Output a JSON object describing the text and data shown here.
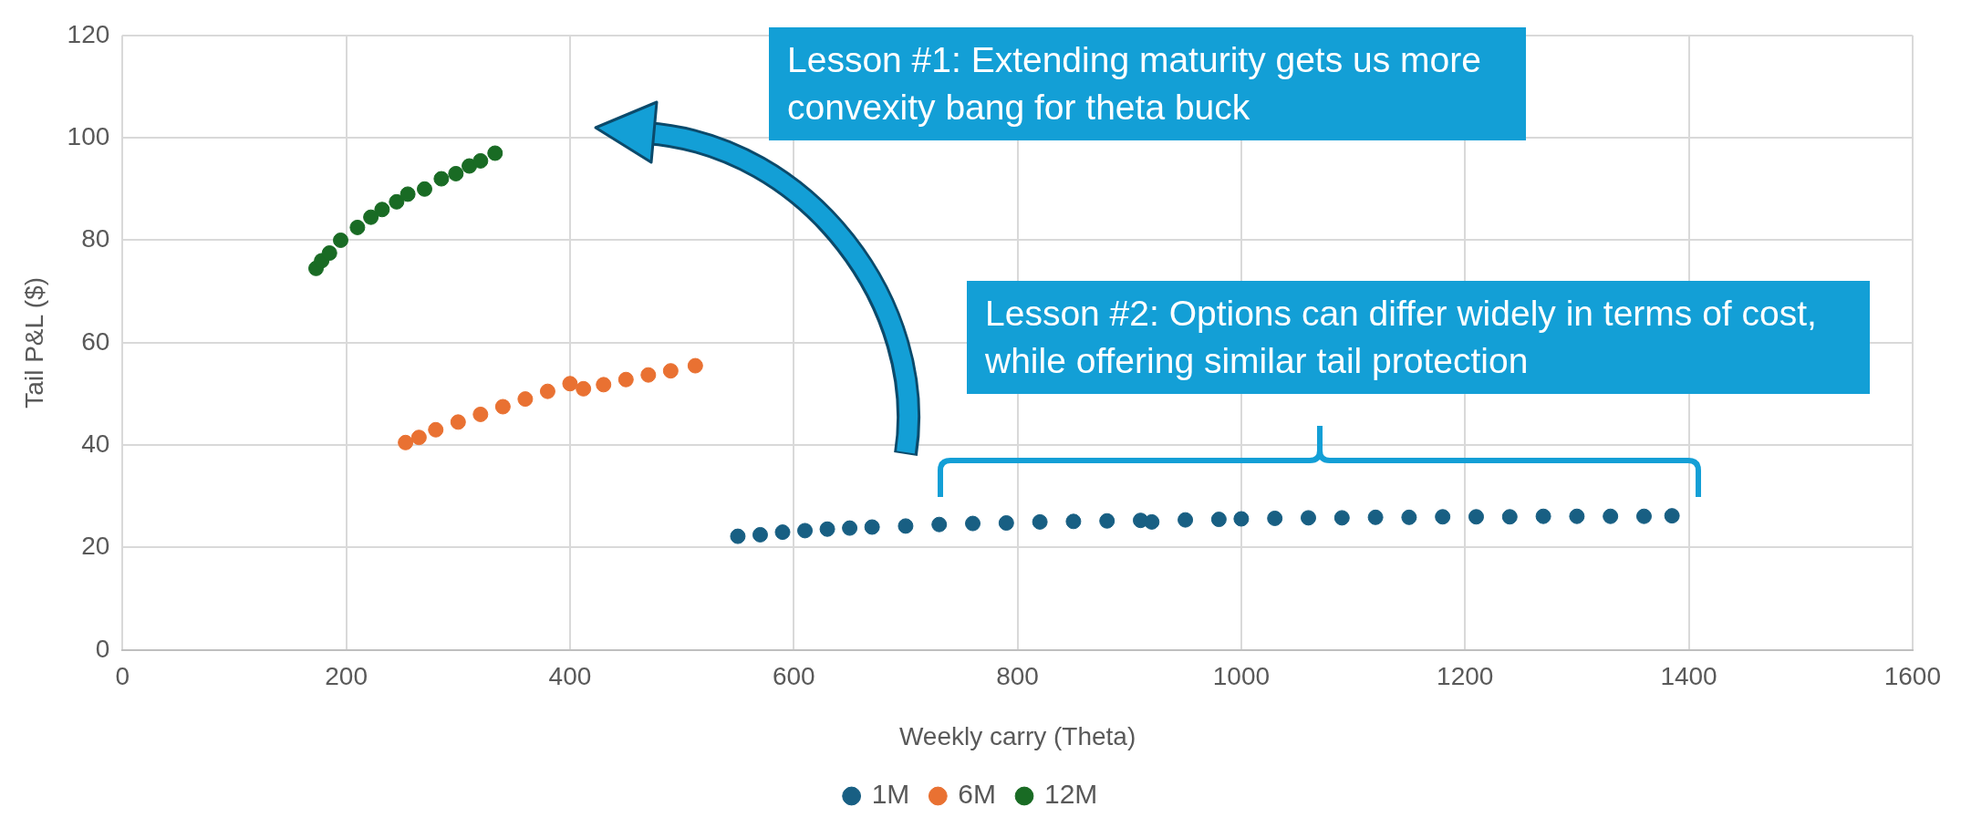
{
  "chart_data": {
    "type": "scatter",
    "xlabel": "Weekly carry (Theta)",
    "ylabel": "Tail P&L ($)",
    "xlim": [
      0,
      1600
    ],
    "ylim": [
      0,
      120
    ],
    "xticks": [
      0,
      200,
      400,
      600,
      800,
      1000,
      1200,
      1400,
      1600
    ],
    "yticks": [
      0,
      20,
      40,
      60,
      80,
      100,
      120
    ],
    "grid": true,
    "legend": "bottom",
    "marker": "circle",
    "annotations": [
      "Lesson #1: Extending maturity gets us more convexity bang for theta buck",
      "Lesson #2: Options can differ widely in terms of cost, while offering similar tail protection"
    ],
    "series": [
      {
        "name": "1M",
        "color": "#185f83",
        "x": [
          550,
          570,
          590,
          610,
          630,
          650,
          670,
          700,
          730,
          760,
          790,
          820,
          850,
          880,
          910,
          920,
          950,
          980,
          1000,
          1030,
          1060,
          1090,
          1120,
          1150,
          1180,
          1210,
          1240,
          1270,
          1300,
          1330,
          1360,
          1385
        ],
        "values": [
          22.2,
          22.5,
          23,
          23.3,
          23.6,
          23.8,
          24,
          24.2,
          24.5,
          24.7,
          24.8,
          25,
          25.1,
          25.2,
          25.3,
          25,
          25.4,
          25.5,
          25.6,
          25.7,
          25.8,
          25.8,
          25.9,
          25.9,
          26,
          26,
          26,
          26.1,
          26.1,
          26.1,
          26.1,
          26.2
        ]
      },
      {
        "name": "6M",
        "color": "#e97132",
        "x": [
          253,
          265,
          280,
          300,
          320,
          340,
          360,
          380,
          400,
          412,
          430,
          450,
          470,
          490,
          512
        ],
        "values": [
          40.5,
          41.5,
          43,
          44.5,
          46,
          47.5,
          49,
          50.5,
          52,
          51,
          51.8,
          52.8,
          53.7,
          54.5,
          55.5
        ]
      },
      {
        "name": "12M",
        "color": "#196b24",
        "x": [
          173,
          178,
          185,
          195,
          210,
          222,
          232,
          245,
          255,
          270,
          285,
          298,
          310,
          320,
          333
        ],
        "values": [
          74.5,
          76,
          77.5,
          80,
          82.5,
          84.5,
          86,
          87.5,
          89,
          90,
          92,
          93,
          94.5,
          95.5,
          97
        ]
      }
    ]
  }
}
